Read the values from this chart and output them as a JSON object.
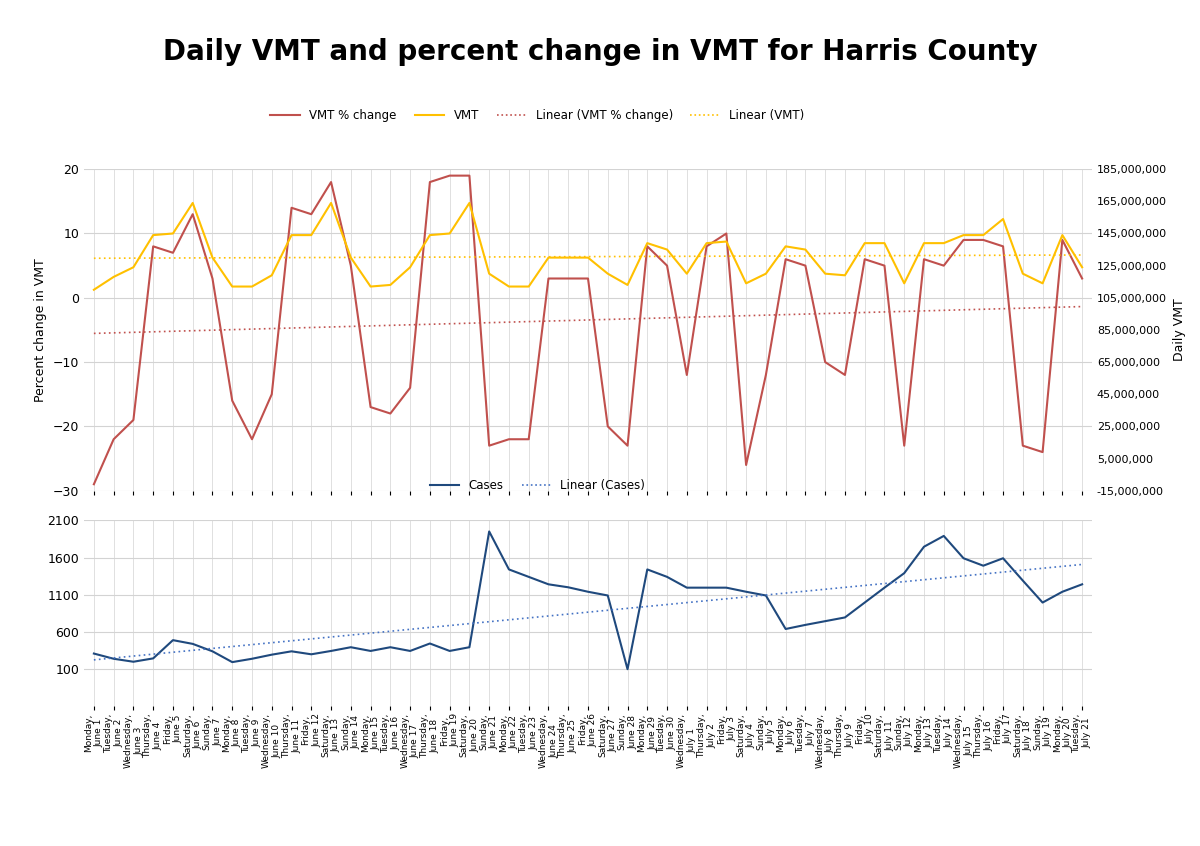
{
  "title": "Daily VMT and percent change in VMT for Harris County",
  "dates": [
    "Monday,\nJune 1",
    "Tuesday,\nJune 2",
    "Wednesday,\nJune 3",
    "Thursday,\nJune 4",
    "Friday,\nJune 5",
    "Saturday,\nJune 6",
    "Sunday,\nJune 7",
    "Monday,\nJune 8",
    "Tuesday,\nJune 9",
    "Wednesday,\nJune 10",
    "Thursday,\nJune 11",
    "Friday,\nJune 12",
    "Saturday,\nJune 13",
    "Sunday,\nJune 14",
    "Monday,\nJune 15",
    "Tuesday,\nJune 16",
    "Wednesday,\nJune 17",
    "Thursday,\nJune 18",
    "Friday,\nJune 19",
    "Saturday,\nJune 20",
    "Sunday,\nJune 21",
    "Monday,\nJune 22",
    "Tuesday,\nJune 23",
    "Wednesday,\nJune 24",
    "Thursday,\nJune 25",
    "Friday,\nJune 26",
    "Saturday,\nJune 27",
    "Sunday,\nJune 28",
    "Monday,\nJune 29",
    "Tuesday,\nJune 30",
    "Wednesday,\nJuly 1",
    "Thursday,\nJuly 2",
    "Friday,\nJuly 3",
    "Saturday,\nJuly 4",
    "Sunday,\nJuly 5",
    "Monday,\nJuly 6",
    "Tuesday,\nJuly 7",
    "Wednesday,\nJuly 8",
    "Thursday,\nJuly 9",
    "Friday,\nJuly 10",
    "Saturday,\nJuly 11",
    "Sunday,\nJuly 12",
    "Monday,\nJuly 13",
    "Tuesday,\nJuly 14",
    "Wednesday,\nJuly 15",
    "Thursday,\nJuly 16",
    "Friday,\nJuly 17",
    "Saturday,\nJuly 18",
    "Sunday,\nJuly 19",
    "Monday,\nJuly 20",
    "Tuesday,\nJuly 21"
  ],
  "vmt_pct_change": [
    -29,
    -22,
    -19,
    8,
    7,
    13,
    3,
    -16,
    -22,
    -15,
    14,
    13,
    18,
    5,
    -17,
    -18,
    -14,
    18,
    19,
    19,
    -23,
    -22,
    -22,
    3,
    3,
    3,
    -20,
    -23,
    8,
    5,
    -12,
    8,
    10,
    -26,
    -12,
    6,
    5,
    -10,
    -12,
    6,
    5,
    -23,
    6,
    5,
    9,
    9,
    8,
    -23,
    -24,
    9,
    3
  ],
  "vmt": [
    110000000,
    118000000,
    124000000,
    144000000,
    145000000,
    164000000,
    130000000,
    112000000,
    112000000,
    119000000,
    144000000,
    144000000,
    164000000,
    130000000,
    112000000,
    113000000,
    124000000,
    144000000,
    145000000,
    164000000,
    120000000,
    112000000,
    112000000,
    130000000,
    130000000,
    130000000,
    120000000,
    113000000,
    139000000,
    135000000,
    120000000,
    139000000,
    140000000,
    114000000,
    120000000,
    137000000,
    135000000,
    120000000,
    119000000,
    139000000,
    139000000,
    114000000,
    139000000,
    139000000,
    144000000,
    144000000,
    154000000,
    120000000,
    114000000,
    144000000,
    124000000
  ],
  "cases": [
    310,
    240,
    200,
    245,
    490,
    440,
    340,
    195,
    240,
    295,
    340,
    300,
    345,
    395,
    345,
    395,
    345,
    445,
    345,
    395,
    1950,
    1440,
    1340,
    1240,
    1200,
    1140,
    1090,
    100,
    1440,
    1340,
    1195,
    1195,
    1195,
    1140,
    1090,
    640,
    695,
    745,
    795,
    995,
    1195,
    1390,
    1745,
    1890,
    1590,
    1490,
    1590,
    1290,
    995,
    1140,
    1240
  ],
  "left_ylim": [
    -30,
    20
  ],
  "left_yticks": [
    -30,
    -20,
    -10,
    0,
    10,
    20
  ],
  "right_ylim": [
    -15000000,
    185000000
  ],
  "right_yticks": [
    -15000000,
    5000000,
    25000000,
    45000000,
    65000000,
    85000000,
    105000000,
    125000000,
    145000000,
    165000000,
    185000000
  ],
  "cases_ylim": [
    -400,
    2100
  ],
  "cases_yticks": [
    100,
    600,
    1100,
    1600,
    2100
  ],
  "vmt_pct_color": "#C0504D",
  "vmt_color": "#FFC000",
  "cases_color": "#1F497D",
  "linear_vmt_pct_color": "#C0504D",
  "linear_vmt_color": "#FFC000",
  "linear_cases_color": "#4472C4",
  "ylabel_left": "Percent change in VMT",
  "ylabel_right": "Daily VMT",
  "bg_color": "#FFFFFF",
  "plot_bg_color": "#FFFFFF",
  "grid_color": "#D3D3D3"
}
